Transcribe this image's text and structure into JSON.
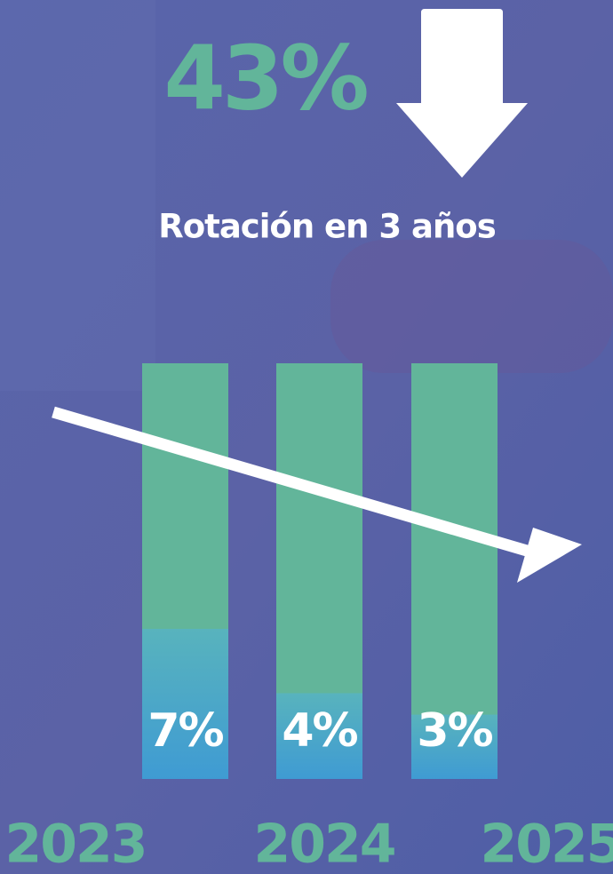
{
  "chart_data": {
    "type": "bar",
    "title": "43%",
    "subtitle": "Rotación en 3 años",
    "categories": [
      "2023",
      "2024",
      "2025"
    ],
    "values": [
      7,
      4,
      3
    ],
    "value_labels": [
      "7%",
      "4%",
      "3%"
    ],
    "color": "#4aa6cc",
    "track_color": "#62b59a"
  }
}
